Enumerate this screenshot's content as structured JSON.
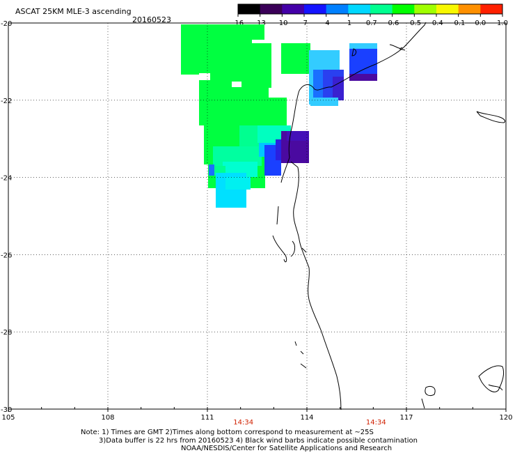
{
  "title": "ASCAT 25KM MLE-3 ascending",
  "date": "20160523",
  "colorbar": {
    "labels": [
      "-16",
      "-13",
      "-10",
      "-7",
      "-4",
      "-1",
      "-0.7",
      "-0.6",
      "-0.5",
      "-0.4",
      "-0.1",
      "0.0",
      "1.0"
    ],
    "colors": [
      "#000000",
      "#3a0058",
      "#4400a8",
      "#1414ff",
      "#0080ff",
      "#00d8ff",
      "#00ff90",
      "#00ff00",
      "#a0ff00",
      "#f8f800",
      "#ff9000",
      "#ff2000"
    ]
  },
  "map": {
    "lon_range": [
      105,
      120
    ],
    "lat_range": [
      -30,
      -20
    ],
    "lon_ticks": [
      "105",
      "108",
      "111",
      "114",
      "117",
      "120"
    ],
    "lat_ticks": [
      "-20",
      "-22",
      "-24",
      "-26",
      "-28",
      "-30"
    ],
    "pass_times": [
      "14:34",
      "14:34"
    ],
    "pass_time_color": "#d02000"
  },
  "notes": {
    "line1": "Note: 1) Times are GMT 2)Times along bottom correspond to measurement at ~25S",
    "line2": "3)Data buffer is 22 hrs from 20160523 4) Black wind barbs indicate possible contamination",
    "line3": "NOAA/NESDIS/Center for Satellite Applications and Research"
  },
  "swath_colors": {
    "green": "#00ff40",
    "mint": "#00ff90",
    "cyan": "#00e0ff",
    "light_cyan": "#33ccff",
    "blue": "#1a40ff",
    "dark_blue": "#3a10c8",
    "purple": "#4a0aa0"
  }
}
